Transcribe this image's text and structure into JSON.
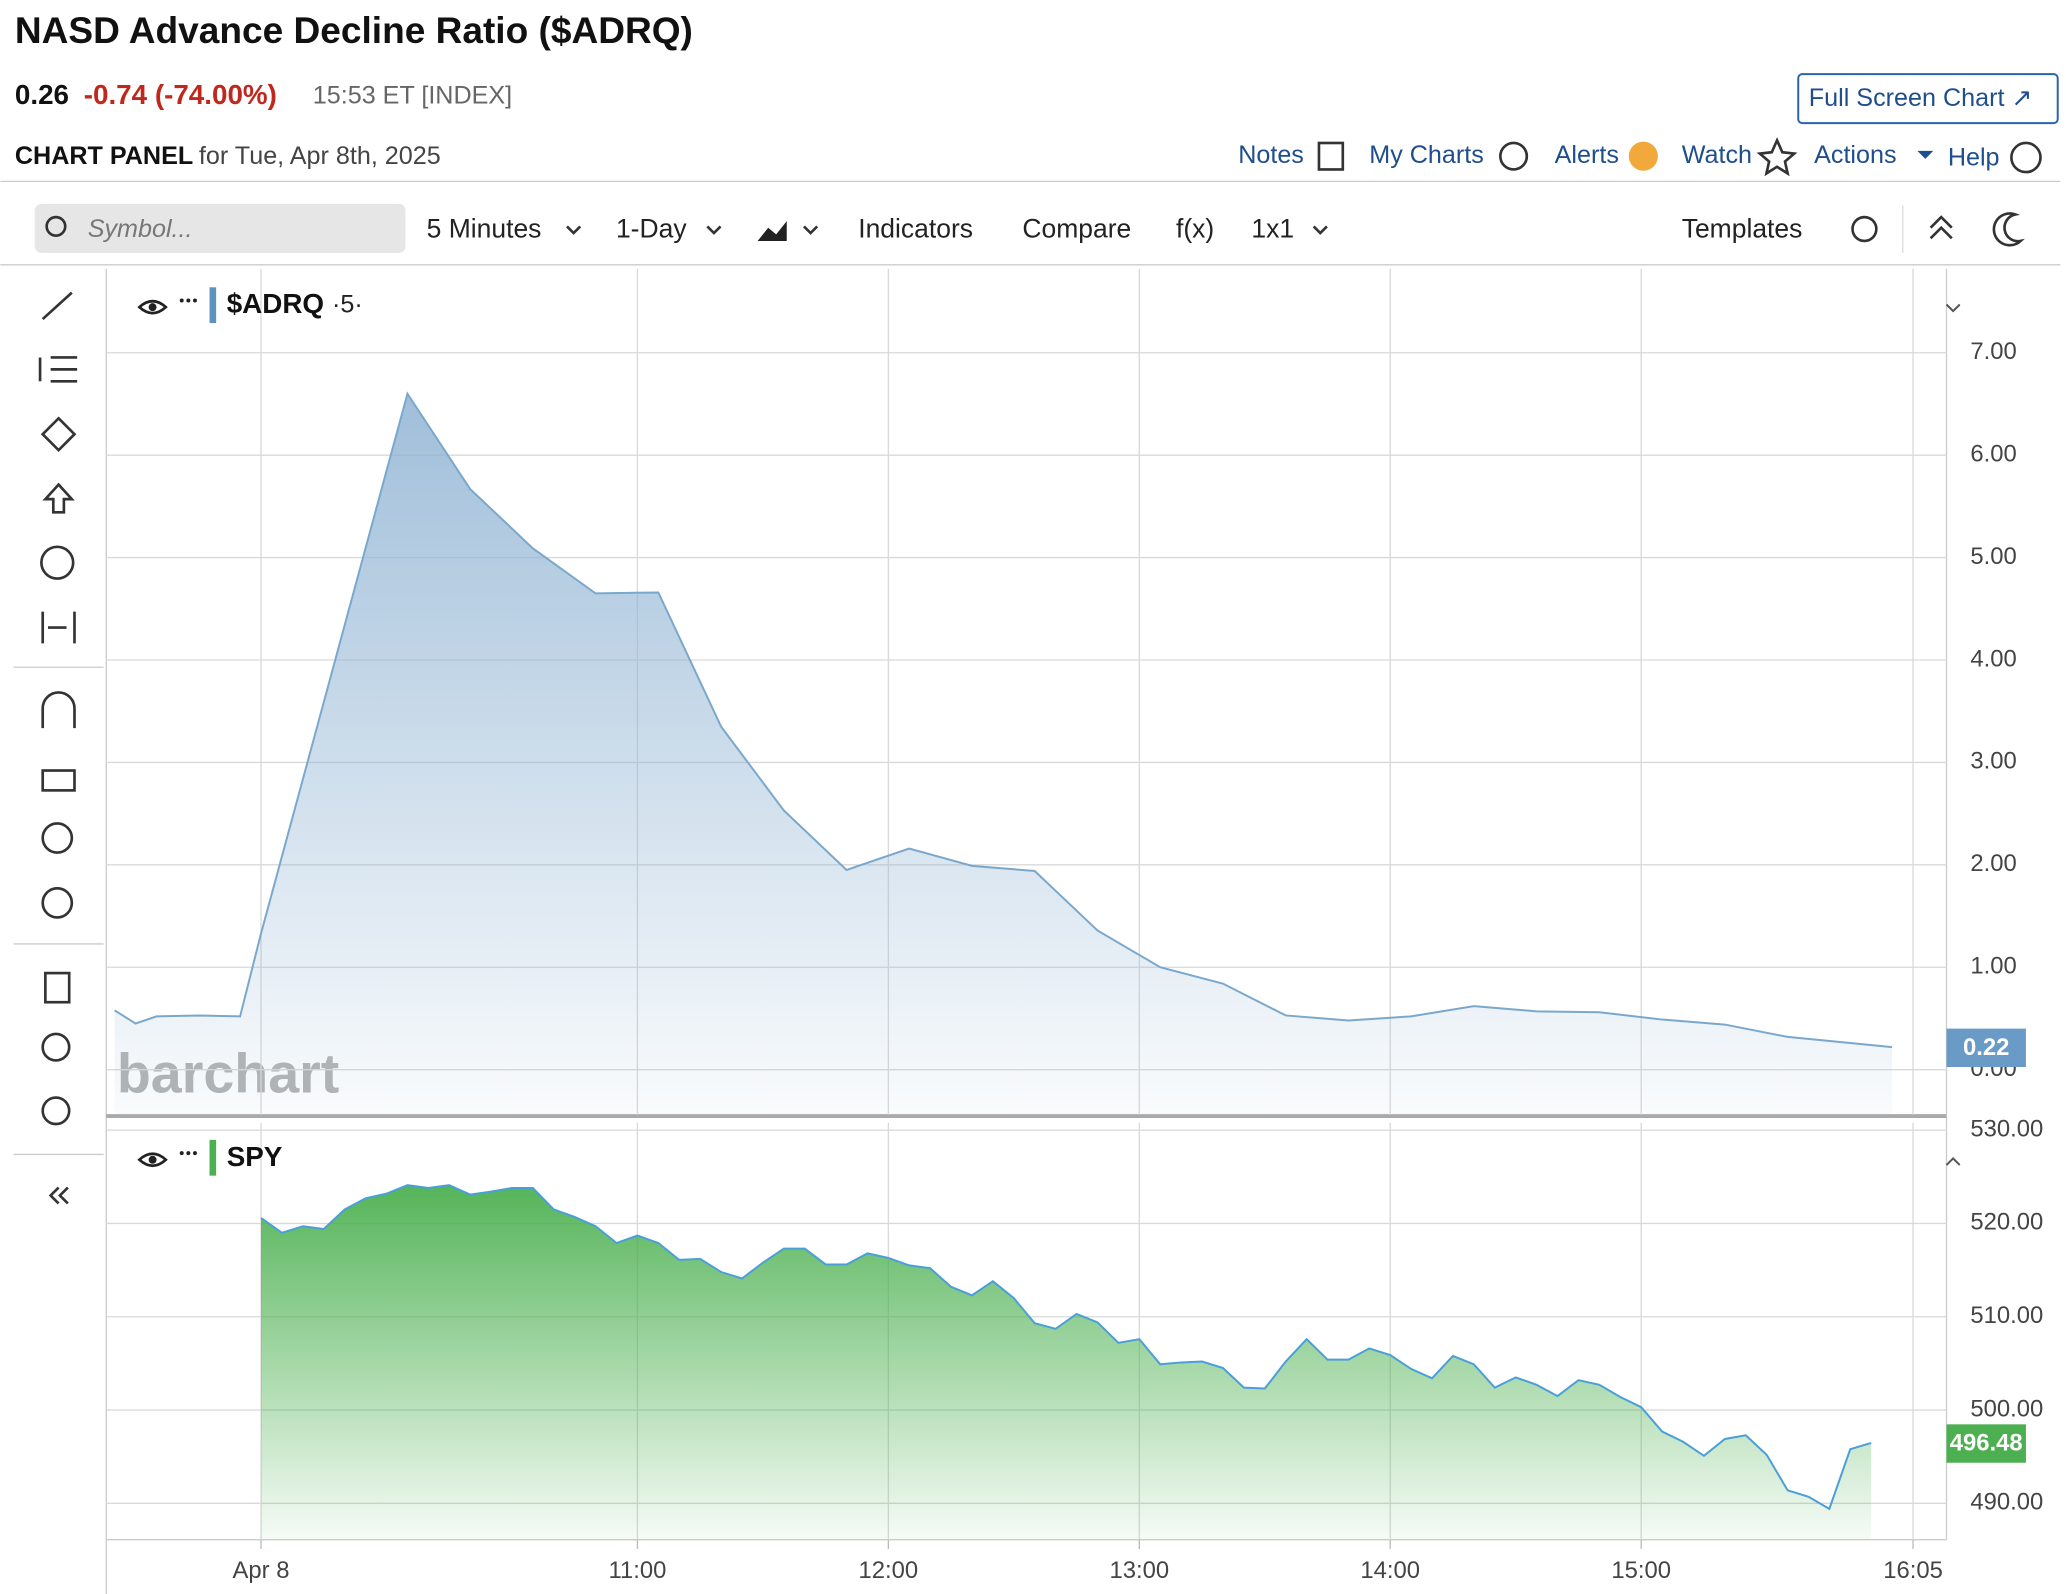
{
  "header": {
    "title": "NASD Advance Decline Ratio ($ADRQ)",
    "price": "0.26",
    "change": "-0.74 (-74.00%)",
    "time": "15:53 ET [INDEX]",
    "full_screen": "Full Screen Chart ↗",
    "panel_label": "CHART PANEL",
    "panel_date": "for Tue, Apr 8th, 2025",
    "nav": [
      "Notes",
      "My Charts",
      "Alerts",
      "Watch",
      "Actions",
      "Help"
    ]
  },
  "toolbar": {
    "symbol_placeholder": "Symbol...",
    "interval": "5 Minutes",
    "range": "1-Day",
    "indicators": "Indicators",
    "compare": "Compare",
    "fx": "f(x)",
    "layout": "1x1",
    "templates": "Templates"
  },
  "watermark": "barchart",
  "chart_data": [
    {
      "type": "area",
      "name": "$ADRQ",
      "legend_suffix": "·5·",
      "legend_color": "#5f93bf",
      "color": "#7aa8cc",
      "fill_color": "#8fb3d3",
      "x": [
        535,
        540,
        545,
        555,
        565,
        570,
        605,
        620,
        635,
        650,
        665,
        680,
        695,
        710,
        725,
        740,
        755,
        770,
        785,
        800,
        815,
        830,
        845,
        860,
        875,
        890,
        905,
        920,
        935,
        960
      ],
      "values": [
        0.58,
        0.45,
        0.52,
        0.53,
        0.52,
        1.33,
        6.6,
        5.67,
        5.09,
        4.65,
        4.66,
        3.35,
        2.53,
        1.95,
        2.16,
        1.99,
        1.94,
        1.36,
        1.0,
        0.84,
        0.53,
        0.48,
        0.52,
        0.62,
        0.57,
        0.56,
        0.49,
        0.44,
        0.32,
        0.22
      ],
      "xlim": [
        533,
        973
      ],
      "ylim": [
        -0.44,
        7.82
      ],
      "yticks": [
        {
          "value": 0,
          "label": "0.00"
        },
        {
          "value": 1,
          "label": "1.00"
        },
        {
          "value": 2,
          "label": "2.00"
        },
        {
          "value": 3,
          "label": "3.00"
        },
        {
          "value": 4,
          "label": "4.00"
        },
        {
          "value": 5,
          "label": "5.00"
        },
        {
          "value": 6,
          "label": "6.00"
        },
        {
          "value": 7,
          "label": "7.00"
        }
      ],
      "grid": true,
      "last_value": 0.22,
      "badge_color": "#6a9bc6"
    },
    {
      "type": "area",
      "name": "SPY",
      "legend_color": "#4cb050",
      "color": "#4a9fd8",
      "fill_color": "#4cb050",
      "x": [
        570,
        575,
        580,
        585,
        590,
        595,
        600,
        605,
        610,
        615,
        620,
        625,
        630,
        635,
        640,
        645,
        650,
        655,
        660,
        665,
        670,
        675,
        680,
        685,
        690,
        695,
        700,
        705,
        710,
        715,
        720,
        725,
        730,
        735,
        740,
        745,
        750,
        755,
        760,
        765,
        770,
        775,
        780,
        785,
        790,
        795,
        800,
        805,
        810,
        815,
        820,
        825,
        830,
        835,
        840,
        845,
        850,
        855,
        860,
        865,
        870,
        875,
        880,
        885,
        890,
        895,
        900,
        905,
        910,
        915,
        920,
        925,
        930,
        935,
        940,
        945,
        950,
        955
      ],
      "values": [
        520.6,
        519.0,
        519.7,
        519.4,
        521.5,
        522.7,
        523.2,
        524.1,
        523.8,
        524.1,
        523.1,
        523.4,
        523.8,
        523.8,
        521.5,
        520.7,
        519.7,
        517.9,
        518.7,
        517.9,
        516.1,
        516.2,
        514.8,
        514.1,
        515.8,
        517.3,
        517.3,
        515.6,
        515.6,
        516.8,
        516.3,
        515.5,
        515.2,
        513.2,
        512.3,
        513.8,
        512.0,
        509.3,
        508.7,
        510.3,
        509.4,
        507.2,
        507.6,
        504.9,
        505.1,
        505.2,
        504.5,
        502.4,
        502.3,
        505.2,
        507.6,
        505.4,
        505.4,
        506.6,
        505.9,
        504.4,
        503.4,
        505.8,
        504.9,
        502.4,
        503.5,
        502.7,
        501.5,
        503.2,
        502.7,
        501.4,
        500.3,
        497.7,
        496.6,
        495.1,
        496.9,
        497.3,
        495.2,
        491.4,
        490.7,
        489.4,
        495.8,
        496.48
      ],
      "xlim": [
        533,
        973
      ],
      "ylim": [
        486.1,
        530.8
      ],
      "xticks": [
        {
          "value": 570,
          "label": "Apr 8"
        },
        {
          "value": 660,
          "label": "11:00"
        },
        {
          "value": 720,
          "label": "12:00"
        },
        {
          "value": 780,
          "label": "13:00"
        },
        {
          "value": 840,
          "label": "14:00"
        },
        {
          "value": 900,
          "label": "15:00"
        },
        {
          "value": 965,
          "label": "16:05"
        }
      ],
      "yticks": [
        {
          "value": 490,
          "label": "490.00"
        },
        {
          "value": 500,
          "label": "500.00"
        },
        {
          "value": 510,
          "label": "510.00"
        },
        {
          "value": 520,
          "label": "520.00"
        },
        {
          "value": 530,
          "label": "530.00"
        }
      ],
      "grid": true,
      "last_value": 496.48,
      "badge_color": "#4cb050"
    }
  ]
}
